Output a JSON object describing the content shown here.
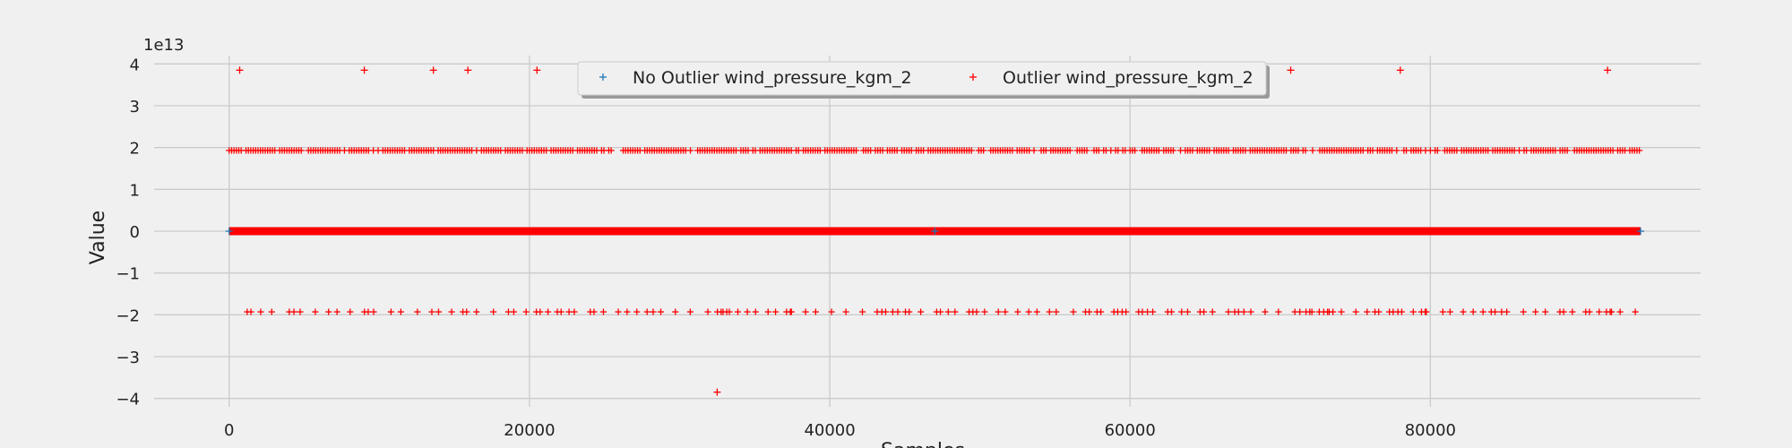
{
  "chart_data": {
    "type": "scatter",
    "title": "",
    "xlabel": "Samples",
    "ylabel": "Value",
    "y_scale_label": "1e13",
    "xlim": [
      -5000,
      98000
    ],
    "ylim": [
      -4.2,
      4.2
    ],
    "x_ticks": [
      0,
      20000,
      40000,
      60000,
      80000
    ],
    "x_tick_labels": [
      "0",
      "20000",
      "40000",
      "60000",
      "80000"
    ],
    "y_ticks": [
      -4,
      -3,
      -2,
      -1,
      0,
      1,
      2,
      3,
      4
    ],
    "y_tick_labels": [
      "−4",
      "−3",
      "−2",
      "−1",
      "0",
      "1",
      "2",
      "3",
      "4"
    ],
    "grid": true,
    "legend_position": "top-center",
    "sample_range": [
      0,
      94000
    ],
    "series": [
      {
        "name": "No Outlier wind_pressure_kgm_2",
        "color": "#1f77b4",
        "marker": "+",
        "values": [
          0,
          0,
          0
        ]
      },
      {
        "name": "Outlier wind_pressure_kgm_2",
        "color": "#ff0000",
        "marker": "+",
        "level_values": [
          3.85,
          1.93,
          0,
          -1.93,
          -3.85
        ],
        "top_points_x": [
          700,
          9000,
          13600,
          15900,
          20500,
          70700,
          78000,
          91800
        ],
        "top_points_y": 3.85,
        "bottom_points_x": [
          32500
        ],
        "bottom_points_y": -3.85
      }
    ]
  }
}
